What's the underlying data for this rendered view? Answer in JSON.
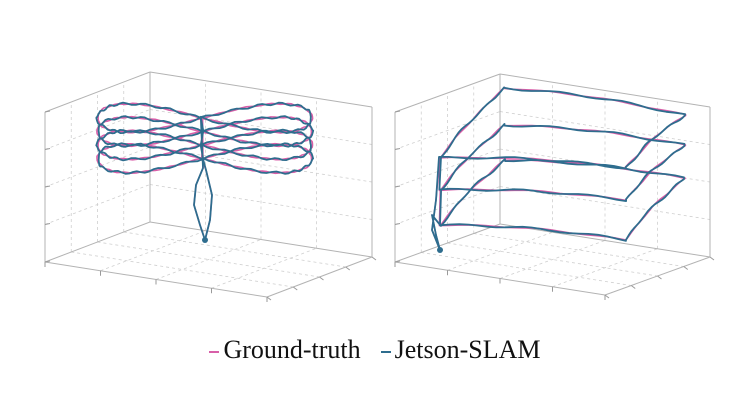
{
  "colors": {
    "ground_truth": "#d85fa8",
    "estimate": "#2e6d8e",
    "box": "#b3b3b3",
    "grid": "#cfcfcf"
  },
  "legend": {
    "items": [
      {
        "label": "Ground-truth",
        "color": "#d85fa8"
      },
      {
        "label": "Jetson-SLAM",
        "color": "#2e6d8e"
      }
    ]
  },
  "plots": [
    {
      "trajectory": "figure-eight loops (stacked)"
    },
    {
      "trajectory": "stacked rectangular laps"
    }
  ]
}
